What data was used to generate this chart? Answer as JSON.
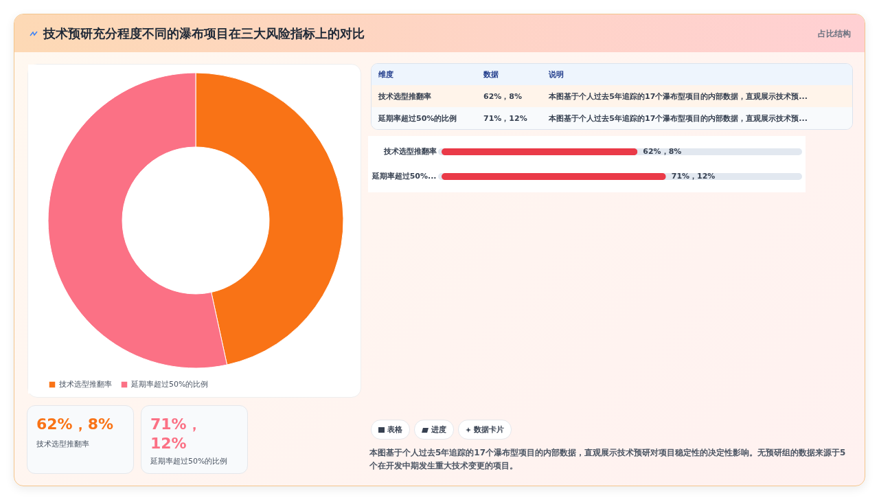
{
  "chart_data": [
    {
      "type": "donut",
      "categories": [
        "技术选型推翻率",
        "延期率超过50%的比例"
      ],
      "values": [
        46.6,
        53.4
      ],
      "colors": [
        "#f97316",
        "#fb7185"
      ],
      "legend": "bottom"
    },
    {
      "type": "bar",
      "orientation": "horizontal",
      "categories": [
        "技术选型推翻率",
        "延期率超过50%..."
      ],
      "values": [
        62,
        71
      ],
      "color": "#ea3a48",
      "value_labels": [
        "62%，8%",
        "71%，12%"
      ],
      "xlim": [
        0,
        113
      ],
      "tick_labels": false
    },
    {
      "type": "other",
      "title": "技术预研充分程度不同的瀑布项目在三大风险指标上的对比",
      "subtitle": "占比结构",
      "annotations": [
        "维度",
        "数据",
        "说明",
        "技术选型推翻率",
        "62%，8%",
        "本图基于个人过去5年追踪的17个瀑布型项目的内部数据，直观展示技术预...",
        "延期率超过50%的比例",
        "71%，12%",
        "本图基于个人过去5年追踪的17个瀑布型项目的内部数据，直观展示技术预...",
        "62%，8%",
        "技术选型推翻率",
        "71%，12%",
        "延期率超过50%的比例",
        "表格",
        "进度",
        "数据卡片",
        "本图基于个人过去5年追踪的17个瀑布型项目的内部数据，直观展示技术预研对项目稳定性的决定性影响。无预研组的数据来源于5个在开发中期发生重大技术变更的项目。"
      ]
    }
  ]
}
